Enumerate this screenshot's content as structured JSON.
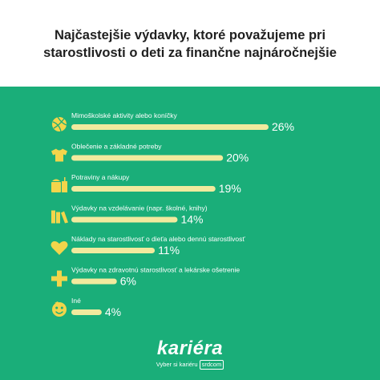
{
  "title": {
    "line1": "Najčastejšie výdavky, ktoré považujeme pri",
    "line2": "starostlivosti o deti za finančne najnáročnejšie"
  },
  "colors": {
    "background": "#1aae79",
    "bar": "#f1ea9e",
    "icon": "#f2d54b",
    "text": "#ffffff"
  },
  "chart_data": {
    "type": "bar",
    "orientation": "horizontal",
    "categories": [
      "Mimoškolské aktivity alebo koníčky",
      "Oblečenie a základné potreby",
      "Potraviny a nákupy",
      "Výdavky na vzdelávanie (napr. školné, knihy)",
      "Náklady na starostlivosť o dieťa alebo dennú starostlivosť",
      "Výdavky na zdravotnú starostlivosť a lekárske ošetrenie",
      "Iné"
    ],
    "values": [
      26,
      20,
      19,
      14,
      11,
      6,
      4
    ],
    "value_labels": [
      "26%",
      "20%",
      "19%",
      "14%",
      "11%",
      "6%",
      "4%"
    ],
    "icons": [
      "volleyball-icon",
      "tshirt-icon",
      "food-icon",
      "books-icon",
      "heart-icon",
      "medical-cross-icon",
      "smiley-icon"
    ],
    "xlim": [
      0,
      26
    ],
    "unit": "%"
  },
  "logo": {
    "wordmark": "kariéra",
    "tagline": "Vyber si kariéru",
    "badge": "srdcom"
  }
}
